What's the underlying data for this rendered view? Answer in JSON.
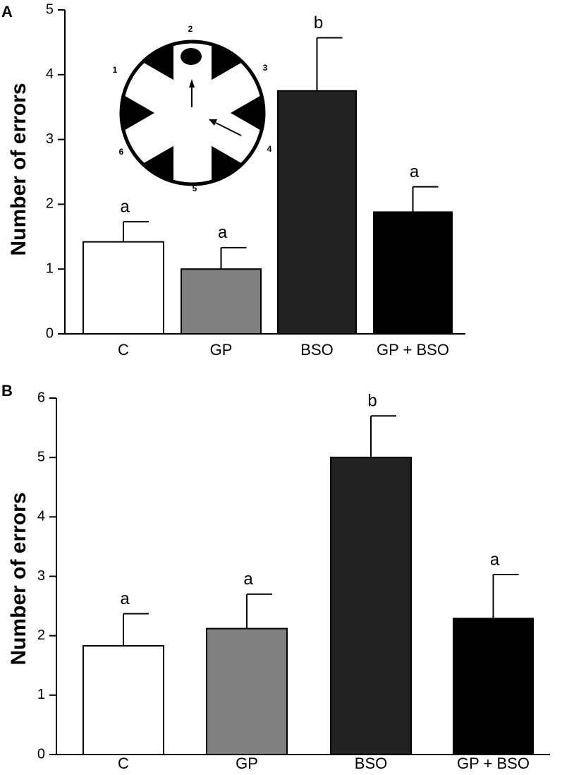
{
  "chart_data": [
    {
      "type": "bar",
      "panel": "A",
      "y_label": "Number of errors",
      "categories": [
        "C",
        "GP",
        "BSO",
        "GP + BSO"
      ],
      "values": [
        1.42,
        1.0,
        3.75,
        1.88
      ],
      "errors": [
        0.31,
        0.33,
        0.82,
        0.39
      ],
      "annotations": [
        "a",
        "a",
        "b",
        "a"
      ],
      "colors": [
        "#ffffff",
        "#808080",
        "#222222",
        "#000000"
      ],
      "ylim": [
        0,
        5
      ],
      "yticks": [
        0,
        1,
        2,
        3,
        4,
        5
      ],
      "inset_labels": [
        "1",
        "2",
        "3",
        "4",
        "5",
        "6"
      ]
    },
    {
      "type": "bar",
      "panel": "B",
      "y_label": "Number of errors",
      "categories": [
        "C",
        "GP",
        "BSO",
        "GP + BSO"
      ],
      "values": [
        1.83,
        2.12,
        5.0,
        2.29
      ],
      "errors": [
        0.54,
        0.58,
        0.7,
        0.74
      ],
      "annotations": [
        "a",
        "a",
        "b",
        "a"
      ],
      "colors": [
        "#ffffff",
        "#808080",
        "#222222",
        "#000000"
      ],
      "ylim": [
        0,
        6
      ],
      "yticks": [
        0,
        1,
        2,
        3,
        4,
        5,
        6
      ]
    }
  ]
}
